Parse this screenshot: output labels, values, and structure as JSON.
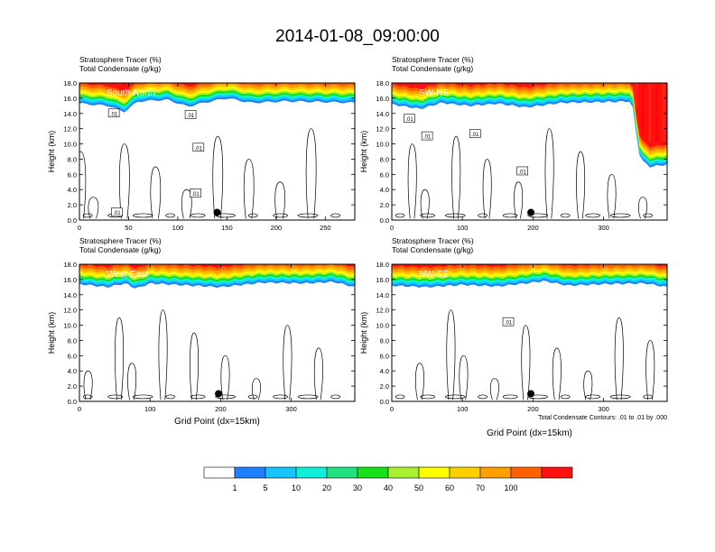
{
  "title": "2014-01-08_09:00:00",
  "colors": {
    "levels": [
      "#ffffff",
      "#1f7fff",
      "#18c4ff",
      "#10f0d8",
      "#20e080",
      "#18e018",
      "#a8f030",
      "#ffff00",
      "#ffd000",
      "#ffa000",
      "#ff6000",
      "#ff1010"
    ],
    "contour": "#000000",
    "surface_point": "#000000"
  },
  "chart_data": [
    {
      "type": "heatmap",
      "label": "South-North",
      "var_top": "Stratosphere Tracer   (%)",
      "var_bottom": "Total Condensate   (g/kg)",
      "ylabel": "Height (km)",
      "xlabel": "",
      "ylim": [
        0,
        18
      ],
      "xlim": [
        0,
        280
      ],
      "yticks": [
        "0.0",
        "2.0",
        "4.0",
        "6.0",
        "8.0",
        "10.0",
        "12.0",
        "14.0",
        "16.0",
        "18.0"
      ],
      "xticks": [
        {
          "v": 0,
          "t": "0"
        },
        {
          "v": 50,
          "t": "50"
        },
        {
          "v": 100,
          "t": "100"
        },
        {
          "v": 150,
          "t": "150"
        },
        {
          "v": 200,
          "t": "200"
        },
        {
          "v": 250,
          "t": "250"
        }
      ],
      "tracer_base_km": [
        [
          0,
          15.3
        ],
        [
          30,
          15.0
        ],
        [
          45,
          14.2
        ],
        [
          60,
          15.6
        ],
        [
          90,
          15.8
        ],
        [
          110,
          14.9
        ],
        [
          130,
          15.5
        ],
        [
          150,
          16.0
        ],
        [
          175,
          15.4
        ],
        [
          210,
          15.6
        ],
        [
          250,
          15.5
        ],
        [
          280,
          15.4
        ]
      ],
      "contour_labels": [
        {
          "x": 35,
          "y": 14.0,
          "t": ".01"
        },
        {
          "x": 113,
          "y": 13.8,
          "t": ".01"
        },
        {
          "x": 121,
          "y": 9.5,
          "t": ".01"
        },
        {
          "x": 118,
          "y": 3.5,
          "t": ".01"
        },
        {
          "x": 38,
          "y": 1.0,
          "t": ".01"
        }
      ],
      "surface_marker": {
        "x": 140,
        "y": 1.0
      }
    },
    {
      "type": "heatmap",
      "label": "SW-NE",
      "var_top": "Stratosphere Tracer   (%)",
      "var_bottom": "Total Condensate   (g/kg)",
      "ylabel": "Height (km)",
      "xlabel": "",
      "ylim": [
        0,
        18
      ],
      "xlim": [
        0,
        390
      ],
      "yticks": [
        "0.0",
        "2.0",
        "4.0",
        "6.0",
        "8.0",
        "10.0",
        "12.0",
        "14.0",
        "16.0",
        "18.0"
      ],
      "xticks": [
        {
          "v": 0,
          "t": "0"
        },
        {
          "v": 100,
          "t": "100"
        },
        {
          "v": 200,
          "t": "200"
        },
        {
          "v": 300,
          "t": "300"
        }
      ],
      "tracer_base_km": [
        [
          0,
          15.2
        ],
        [
          40,
          14.6
        ],
        [
          70,
          15.4
        ],
        [
          110,
          15.0
        ],
        [
          150,
          15.3
        ],
        [
          190,
          14.8
        ],
        [
          240,
          15.4
        ],
        [
          300,
          15.5
        ],
        [
          340,
          15.6
        ],
        [
          345,
          12.0
        ],
        [
          352,
          8.0
        ],
        [
          365,
          7.0
        ],
        [
          390,
          7.3
        ]
      ],
      "contour_labels": [
        {
          "x": 25,
          "y": 13.3,
          "t": ".01"
        },
        {
          "x": 50,
          "y": 11.0,
          "t": ".01"
        },
        {
          "x": 118,
          "y": 11.3,
          "t": ".01"
        },
        {
          "x": 185,
          "y": 6.4,
          "t": ".01"
        }
      ],
      "surface_marker": {
        "x": 197,
        "y": 1.0
      }
    },
    {
      "type": "heatmap",
      "label": "West-East",
      "var_top": "Stratosphere Tracer   (%)",
      "var_bottom": "Total Condensate   (g/kg)",
      "ylabel": "Height (km)",
      "xlabel": "Grid Point (dx=15km)",
      "ylim": [
        0,
        18
      ],
      "xlim": [
        0,
        390
      ],
      "yticks": [
        "0.0",
        "2.0",
        "4.0",
        "6.0",
        "8.0",
        "10.0",
        "12.0",
        "14.0",
        "16.0",
        "18.0"
      ],
      "xticks": [
        {
          "v": 0,
          "t": "0"
        },
        {
          "v": 100,
          "t": "100"
        },
        {
          "v": 200,
          "t": "200"
        },
        {
          "v": 300,
          "t": "300"
        }
      ],
      "tracer_base_km": [
        [
          0,
          15.4
        ],
        [
          40,
          15.0
        ],
        [
          65,
          15.5
        ],
        [
          80,
          14.8
        ],
        [
          100,
          15.5
        ],
        [
          140,
          15.3
        ],
        [
          200,
          15.0
        ],
        [
          260,
          15.6
        ],
        [
          320,
          15.5
        ],
        [
          360,
          15.7
        ],
        [
          390,
          15.0
        ]
      ],
      "contour_labels": [],
      "surface_marker": {
        "x": 197,
        "y": 1.0
      }
    },
    {
      "type": "heatmap",
      "label": "NW-SE",
      "var_top": "Stratosphere Tracer   (%)",
      "var_bottom": "Total Condensate   (g/kg)",
      "ylabel": "Height (km)",
      "xlabel": "Grid Point (dx=15km)",
      "ylim": [
        0,
        18
      ],
      "xlim": [
        0,
        390
      ],
      "yticks": [
        "0.0",
        "2.0",
        "4.0",
        "6.0",
        "8.0",
        "10.0",
        "12.0",
        "14.0",
        "16.0",
        "18.0"
      ],
      "xticks": [
        {
          "v": 0,
          "t": "0"
        },
        {
          "v": 100,
          "t": "100"
        },
        {
          "v": 200,
          "t": "200"
        },
        {
          "v": 300,
          "t": "300"
        }
      ],
      "tracer_base_km": [
        [
          0,
          15.2
        ],
        [
          50,
          15.0
        ],
        [
          100,
          15.3
        ],
        [
          150,
          15.1
        ],
        [
          190,
          15.5
        ],
        [
          215,
          15.8
        ],
        [
          250,
          15.2
        ],
        [
          300,
          15.4
        ],
        [
          360,
          15.5
        ],
        [
          390,
          15.0
        ]
      ],
      "contour_labels": [
        {
          "x": 165,
          "y": 10.4,
          "t": ".01"
        }
      ],
      "surface_marker": {
        "x": 197,
        "y": 1.0
      },
      "footnote": "Total Condensate Contours: .01 to .01 by .000"
    }
  ],
  "legend": {
    "labels": [
      "1",
      "5",
      "10",
      "20",
      "30",
      "40",
      "50",
      "60",
      "70",
      "100"
    ]
  }
}
